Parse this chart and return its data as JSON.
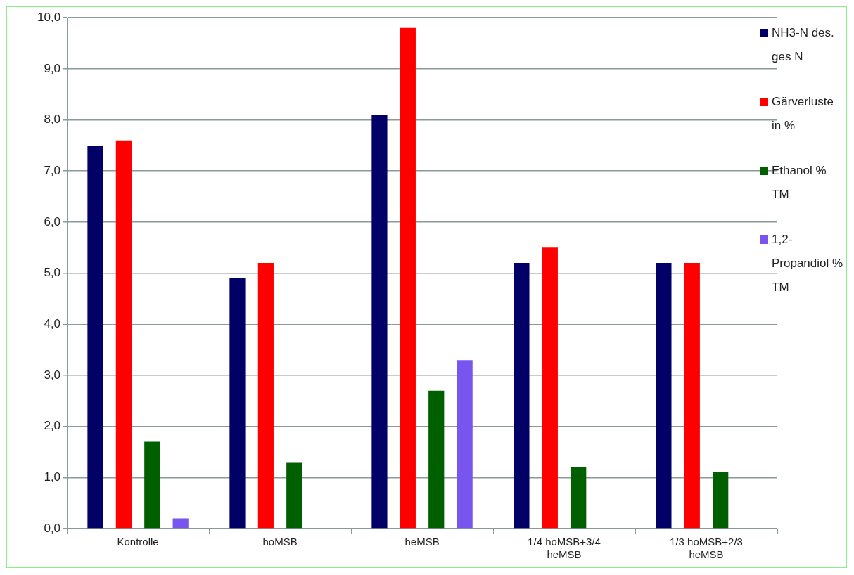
{
  "chart_data": {
    "type": "bar",
    "categories": [
      "Kontrolle",
      "hoMSB",
      "heMSB",
      "1/4 hoMSB+3/4 heMSB",
      "1/3 hoMSB+2/3 heMSB"
    ],
    "series": [
      {
        "name": "NH3-N des. ges N",
        "color": "#000066",
        "values": [
          7.5,
          4.9,
          8.1,
          5.2,
          5.2
        ]
      },
      {
        "name": "Gärverluste in %",
        "color": "#ff0000",
        "values": [
          7.6,
          5.2,
          9.8,
          5.5,
          5.2
        ]
      },
      {
        "name": "Ethanol % TM",
        "color": "#006000",
        "values": [
          1.7,
          1.3,
          2.7,
          1.2,
          1.1
        ]
      },
      {
        "name": "1,2-Propandiol % TM",
        "color": "#7755ee",
        "values": [
          0.2,
          null,
          3.3,
          null,
          null
        ]
      }
    ],
    "ylim": [
      0,
      10
    ],
    "yticks": [
      {
        "value": 0,
        "label": "0,0"
      },
      {
        "value": 1,
        "label": "1,0"
      },
      {
        "value": 2,
        "label": "2,0"
      },
      {
        "value": 3,
        "label": "3,0"
      },
      {
        "value": 4,
        "label": "4,0"
      },
      {
        "value": 5,
        "label": "5,0"
      },
      {
        "value": 6,
        "label": "6,0"
      },
      {
        "value": 7,
        "label": "7,0"
      },
      {
        "value": 8,
        "label": "8,0"
      },
      {
        "value": 9,
        "label": "9,0"
      },
      {
        "value": 10,
        "label": "10,0"
      }
    ],
    "grid": "y",
    "legend": "right"
  }
}
